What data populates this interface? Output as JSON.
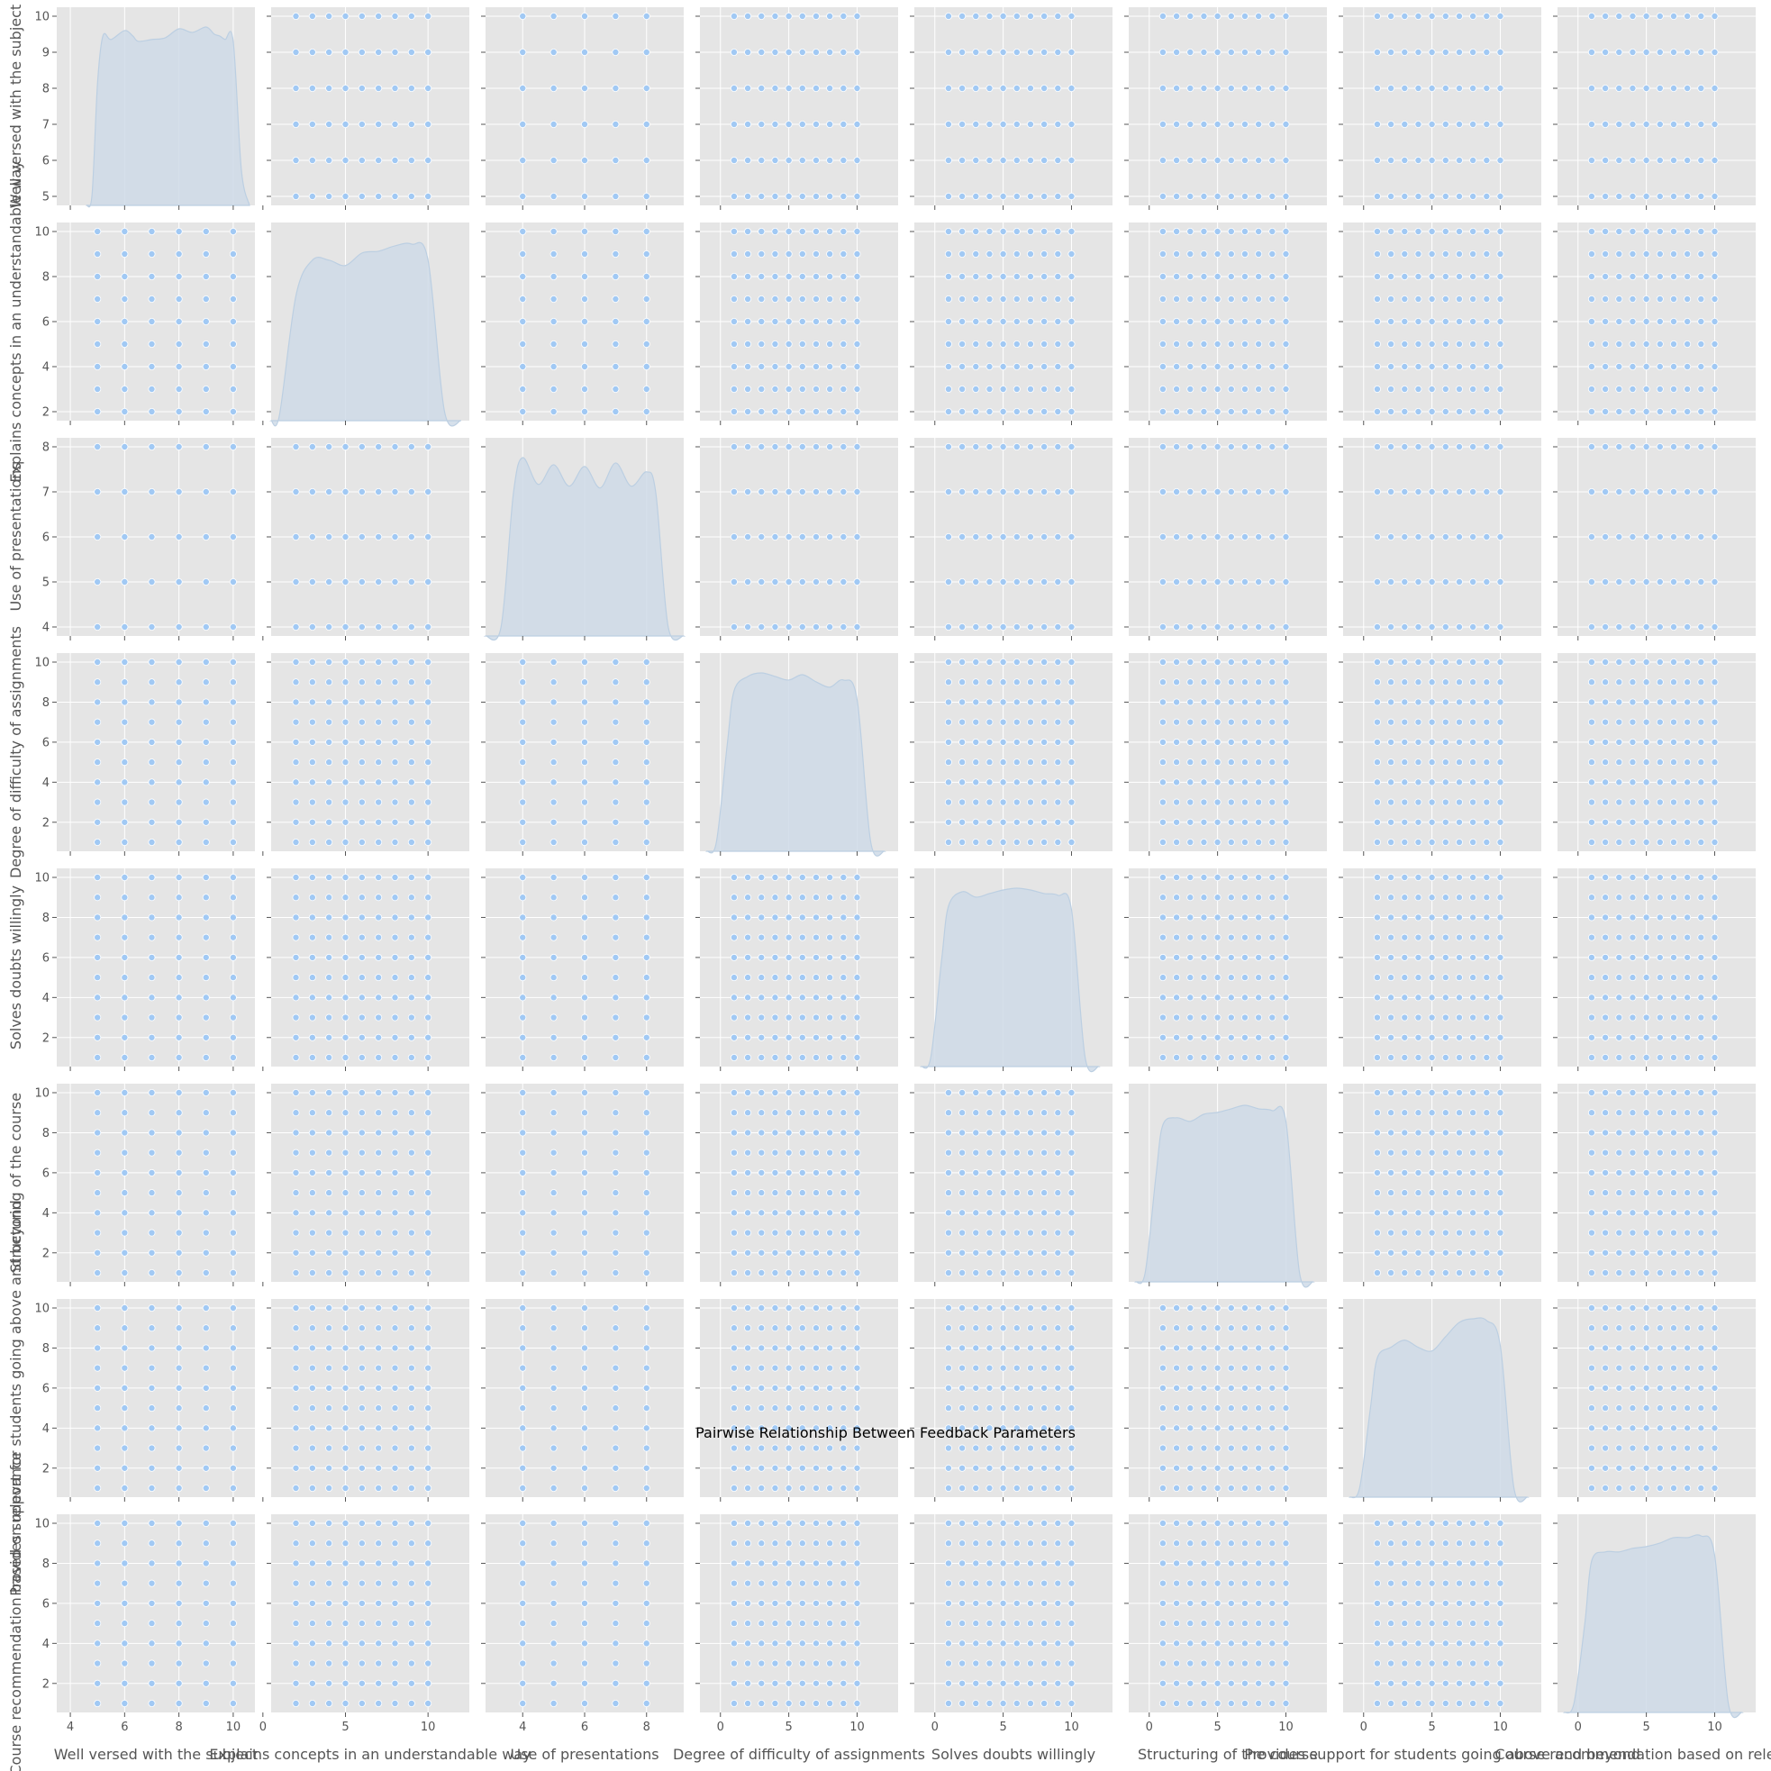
{
  "chart_data": {
    "type": "scatter",
    "subtype": "pairplot",
    "title": "Pairwise Relationship Between Feedback Parameters",
    "style": "ggplot",
    "grid": true,
    "colors": {
      "background": "#e5e5e5",
      "grid": "#ffffff",
      "point_fill": "#a1c9f4",
      "point_edge": "#ffffff",
      "kde_fill": "#cfdbe8",
      "kde_line": "#bccfe2"
    },
    "variables": [
      {
        "name": "Well versed with the subject",
        "range": [
          3.5,
          10.8
        ],
        "ticks": [
          4,
          6,
          8,
          10
        ],
        "values": [
          5,
          6,
          7,
          8,
          9,
          10
        ],
        "kde_x": [
          4.6,
          4.8,
          5.0,
          5.2,
          5.5,
          6.0,
          6.3,
          6.5,
          7.0,
          7.5,
          8.0,
          8.5,
          9.0,
          9.3,
          9.5,
          9.7,
          10.0,
          10.3,
          10.6
        ],
        "kde_y": [
          0.0,
          0.06,
          0.68,
          0.95,
          0.93,
          0.98,
          0.95,
          0.92,
          0.93,
          0.94,
          0.99,
          0.97,
          1.0,
          0.96,
          0.95,
          0.93,
          0.92,
          0.2,
          0.0
        ]
      },
      {
        "name": "Explains concepts in an understandable way",
        "range": [
          0.5,
          12.5
        ],
        "ticks": [
          0,
          5,
          10
        ],
        "values": [
          2,
          3,
          4,
          5,
          6,
          7,
          8,
          9,
          10
        ],
        "kde_x": [
          0.5,
          1.0,
          2.0,
          3.0,
          4.0,
          5.0,
          6.0,
          7.0,
          8.0,
          9.0,
          10.0,
          11.0,
          12.0
        ],
        "kde_y": [
          0.0,
          0.03,
          0.7,
          0.9,
          0.9,
          0.87,
          0.94,
          0.95,
          0.98,
          0.99,
          0.9,
          0.05,
          0.0
        ]
      },
      {
        "name": "Use of presentations",
        "range": [
          2.8,
          9.2
        ],
        "ticks": [
          4,
          6,
          8
        ],
        "values": [
          4,
          5,
          6,
          7,
          8
        ],
        "kde_x": [
          2.8,
          3.3,
          3.7,
          4.0,
          4.5,
          5.0,
          5.5,
          6.0,
          6.5,
          7.0,
          7.5,
          8.0,
          8.3,
          8.7,
          9.2
        ],
        "kde_y": [
          0.0,
          0.05,
          0.8,
          1.0,
          0.85,
          0.96,
          0.84,
          0.95,
          0.83,
          0.97,
          0.84,
          0.92,
          0.8,
          0.05,
          0.0
        ]
      },
      {
        "name": "Degree of difficulty of assignments",
        "range": [
          -1.5,
          13.0
        ],
        "ticks": [
          0,
          5,
          10
        ],
        "values": [
          1,
          2,
          3,
          4,
          5,
          6,
          7,
          8,
          9,
          10
        ],
        "kde_x": [
          -1.0,
          -0.3,
          0.5,
          1.0,
          2.0,
          3.0,
          4.0,
          5.0,
          6.0,
          7.0,
          8.0,
          9.0,
          10.0,
          11.0,
          12.0
        ],
        "kde_y": [
          0.0,
          0.05,
          0.6,
          0.9,
          0.98,
          1.0,
          0.98,
          0.96,
          0.99,
          0.95,
          0.92,
          0.96,
          0.85,
          0.05,
          0.0
        ]
      },
      {
        "name": "Solves doubts willingly",
        "range": [
          -1.5,
          13.0
        ],
        "ticks": [
          0,
          5,
          10
        ],
        "values": [
          1,
          2,
          3,
          4,
          5,
          6,
          7,
          8,
          9,
          10
        ],
        "kde_x": [
          -1.0,
          -0.3,
          0.5,
          1.0,
          2.0,
          3.0,
          4.0,
          5.0,
          6.0,
          7.0,
          8.0,
          9.0,
          10.0,
          11.0,
          12.0
        ],
        "kde_y": [
          0.0,
          0.05,
          0.6,
          0.9,
          0.98,
          0.95,
          0.97,
          0.99,
          1.0,
          0.99,
          0.97,
          0.96,
          0.88,
          0.05,
          0.0
        ]
      },
      {
        "name": "Structuring of the course",
        "range": [
          -1.5,
          13.0
        ],
        "ticks": [
          0,
          5,
          10
        ],
        "values": [
          1,
          2,
          3,
          4,
          5,
          6,
          7,
          8,
          9,
          10
        ],
        "kde_x": [
          -1.0,
          -0.3,
          0.5,
          1.0,
          2.0,
          3.0,
          4.0,
          5.0,
          6.0,
          7.0,
          8.0,
          9.0,
          10.0,
          11.0,
          12.0
        ],
        "kde_y": [
          0.0,
          0.05,
          0.6,
          0.88,
          0.92,
          0.9,
          0.94,
          0.95,
          0.97,
          0.99,
          0.97,
          0.96,
          0.9,
          0.05,
          0.0
        ]
      },
      {
        "name": "Provides support for students going above and beyond",
        "range": [
          -1.5,
          13.0
        ],
        "ticks": [
          0,
          5,
          10
        ],
        "values": [
          1,
          2,
          3,
          4,
          5,
          6,
          7,
          8,
          9,
          10
        ],
        "kde_x": [
          -1.0,
          -0.3,
          0.5,
          1.0,
          2.0,
          3.0,
          4.0,
          5.0,
          6.0,
          7.0,
          8.0,
          9.0,
          10.0,
          11.0,
          12.0
        ],
        "kde_y": [
          0.0,
          0.05,
          0.5,
          0.78,
          0.84,
          0.88,
          0.84,
          0.82,
          0.9,
          0.98,
          1.0,
          0.99,
          0.85,
          0.05,
          0.0
        ]
      },
      {
        "name": "Course recommendation based on relevance",
        "range": [
          -1.5,
          13.0
        ],
        "ticks": [
          0,
          5,
          10
        ],
        "values": [
          1,
          2,
          3,
          4,
          5,
          6,
          7,
          8,
          9,
          10
        ],
        "kde_x": [
          -1.0,
          -0.3,
          0.5,
          1.0,
          2.0,
          3.0,
          4.0,
          5.0,
          6.0,
          7.0,
          8.0,
          9.0,
          10.0,
          11.0,
          12.0
        ],
        "kde_y": [
          0.0,
          0.05,
          0.5,
          0.85,
          0.9,
          0.9,
          0.92,
          0.93,
          0.95,
          0.98,
          0.98,
          0.99,
          0.88,
          0.05,
          0.0
        ]
      }
    ],
    "y_ticks": [
      [
        5,
        6,
        7,
        8,
        9,
        10
      ],
      [
        2,
        4,
        6,
        8,
        10
      ],
      [
        4,
        5,
        6,
        7,
        8
      ],
      [
        2,
        4,
        6,
        8,
        10
      ],
      [
        2,
        4,
        6,
        8,
        10
      ],
      [
        2,
        4,
        6,
        8,
        10
      ],
      [
        2,
        4,
        6,
        8,
        10
      ],
      [
        2,
        4,
        6,
        8,
        10
      ]
    ],
    "y_ranges": [
      [
        4.75,
        10.25
      ],
      [
        1.6,
        10.4
      ],
      [
        3.8,
        8.2
      ],
      [
        0.55,
        10.45
      ],
      [
        0.55,
        10.45
      ],
      [
        0.55,
        10.45
      ],
      [
        0.55,
        10.45
      ],
      [
        0.55,
        10.45
      ]
    ]
  }
}
